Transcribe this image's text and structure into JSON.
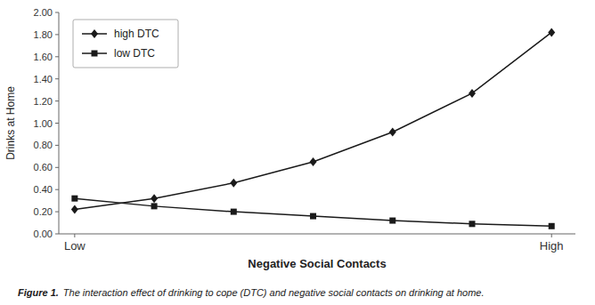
{
  "chart_data": {
    "type": "line",
    "x": [
      0,
      1,
      2,
      3,
      4,
      5,
      6
    ],
    "xlim": [
      -0.2,
      6.3
    ],
    "xticks": [
      {
        "value": 0,
        "label": "Low"
      },
      {
        "value": 6,
        "label": "High"
      }
    ],
    "ylim": [
      0.0,
      2.0
    ],
    "yticks": [
      {
        "value": 0.0,
        "label": "0.00"
      },
      {
        "value": 0.2,
        "label": "0.20"
      },
      {
        "value": 0.4,
        "label": "0.40"
      },
      {
        "value": 0.6,
        "label": "0.60"
      },
      {
        "value": 0.8,
        "label": "0.80"
      },
      {
        "value": 1.0,
        "label": "1.00"
      },
      {
        "value": 1.2,
        "label": "1.20"
      },
      {
        "value": 1.4,
        "label": "1.40"
      },
      {
        "value": 1.6,
        "label": "1.60"
      },
      {
        "value": 1.8,
        "label": "1.80"
      },
      {
        "value": 2.0,
        "label": "2.00"
      }
    ],
    "y_label": "Drinks at Home",
    "x_label": "Negative Social Contacts",
    "series": [
      {
        "name": "high DTC",
        "color": "#1a1a1a",
        "marker": "diamond",
        "values": [
          0.22,
          0.32,
          0.46,
          0.65,
          0.92,
          1.27,
          1.82
        ]
      },
      {
        "name": "low DTC",
        "color": "#1a1a1a",
        "marker": "square",
        "values": [
          0.32,
          0.25,
          0.2,
          0.16,
          0.12,
          0.09,
          0.07
        ]
      }
    ],
    "legend": "upper left",
    "grid": false,
    "annotations": [
      "Figure 1.",
      "The interaction effect of drinking to cope (DTC) and negative social contacts on drinking at home."
    ]
  }
}
